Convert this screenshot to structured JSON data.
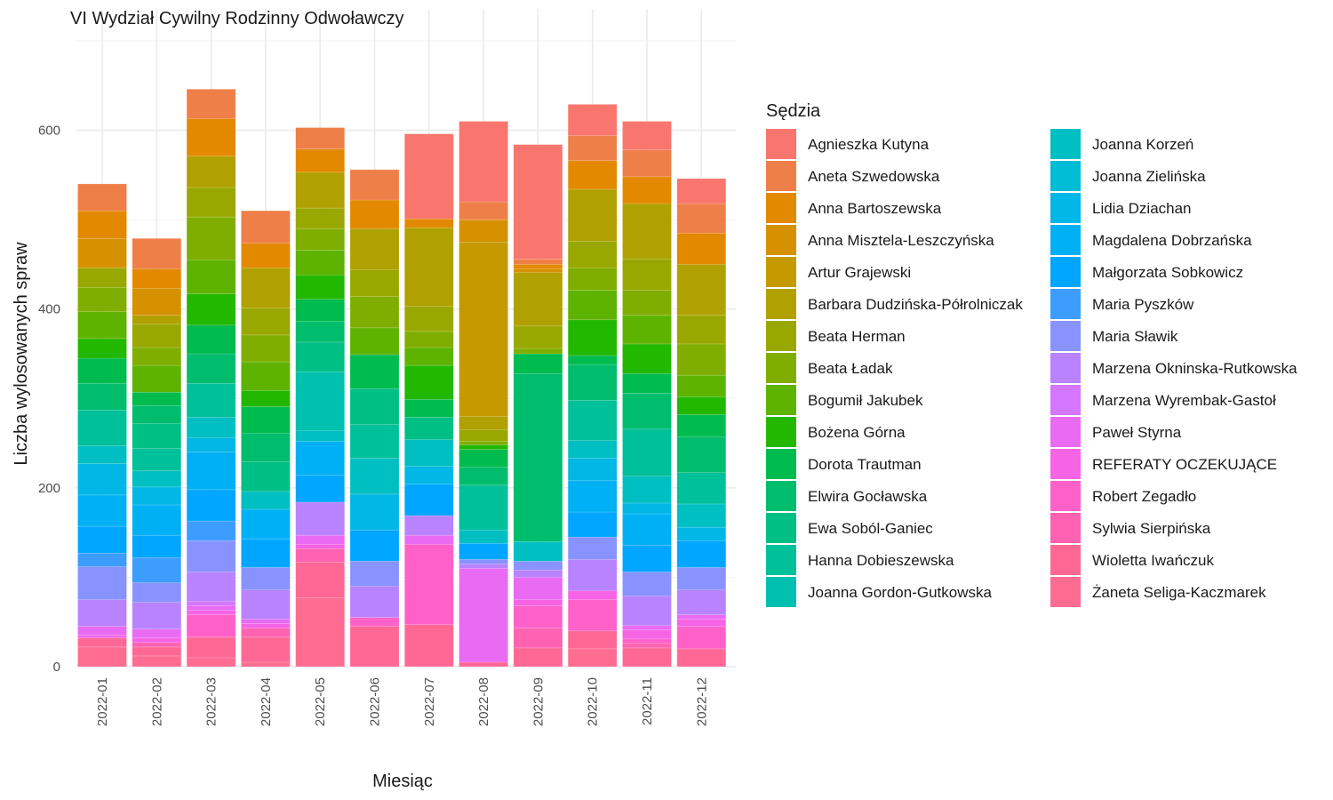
{
  "chart_data": {
    "type": "bar",
    "stacked": true,
    "title": "VI Wydział Cywilny Rodzinny Odwoławczy",
    "xlabel": "Miesiąc",
    "ylabel": "Liczba wylosowanych spraw",
    "ylim": [
      0,
      700
    ],
    "y_ticks": [
      0,
      200,
      400,
      600
    ],
    "grid": true,
    "legend": {
      "title": "Sędzia",
      "position": "right",
      "columns": 2
    },
    "categories": [
      "2022-01",
      "2022-02",
      "2022-03",
      "2022-04",
      "2022-05",
      "2022-06",
      "2022-07",
      "2022-08",
      "2022-09",
      "2022-10",
      "2022-11",
      "2022-12"
    ],
    "series": [
      {
        "name": "Agnieszka Kutyna",
        "color": "#F8766D",
        "values": [
          0,
          0,
          0,
          0,
          0,
          0,
          95,
          90,
          128,
          35,
          32,
          28
        ]
      },
      {
        "name": "Aneta Szwedowska",
        "color": "#EF7F49",
        "values": [
          30,
          34,
          33,
          36,
          24,
          34,
          0,
          20,
          6,
          28,
          30,
          33
        ]
      },
      {
        "name": "Anna Bartoszewska",
        "color": "#E38900",
        "values": [
          31,
          22,
          42,
          28,
          26,
          32,
          10,
          0,
          5,
          32,
          30,
          35
        ]
      },
      {
        "name": "Anna Misztela-Leszczyńska",
        "color": "#D69100",
        "values": [
          33,
          30,
          0,
          0,
          0,
          0,
          0,
          25,
          4,
          0,
          0,
          0
        ]
      },
      {
        "name": "Artur Grajewski",
        "color": "#C49A00",
        "values": [
          0,
          0,
          0,
          0,
          0,
          0,
          0,
          195,
          0,
          0,
          0,
          0
        ]
      },
      {
        "name": "Barbara Dudzińska-Półrolniczak",
        "color": "#B0A000",
        "values": [
          0,
          10,
          35,
          45,
          40,
          46,
          88,
          15,
          60,
          58,
          62,
          57
        ]
      },
      {
        "name": "Beata Herman",
        "color": "#99A800",
        "values": [
          22,
          26,
          33,
          30,
          23,
          30,
          28,
          13,
          25,
          30,
          35,
          32
        ]
      },
      {
        "name": "Beata Ładak",
        "color": "#7FAE00",
        "values": [
          27,
          20,
          48,
          30,
          24,
          35,
          18,
          4,
          6,
          25,
          28,
          35
        ]
      },
      {
        "name": "Bogumił Jakubek",
        "color": "#5EB300",
        "values": [
          30,
          30,
          38,
          32,
          28,
          30,
          20,
          0,
          0,
          33,
          32,
          24
        ]
      },
      {
        "name": "Bożena Górna",
        "color": "#22B800",
        "values": [
          22,
          0,
          35,
          18,
          27,
          0,
          38,
          5,
          0,
          40,
          33,
          20
        ]
      },
      {
        "name": "Dorota Trautman",
        "color": "#00BB4E",
        "values": [
          28,
          15,
          32,
          30,
          25,
          38,
          20,
          20,
          22,
          10,
          22,
          25
        ]
      },
      {
        "name": "Elwira Gocławska",
        "color": "#00BD6D",
        "values": [
          30,
          20,
          33,
          32,
          23,
          0,
          0,
          20,
          188,
          40,
          40,
          40
        ]
      },
      {
        "name": "Ewa Soból-Ganiec",
        "color": "#00BF85",
        "values": [
          0,
          28,
          0,
          33,
          33,
          40,
          25,
          0,
          0,
          0,
          0,
          0
        ]
      },
      {
        "name": "Hanna Dobieszewska",
        "color": "#00C09A",
        "values": [
          40,
          25,
          38,
          0,
          0,
          38,
          0,
          50,
          0,
          45,
          53,
          35
        ]
      },
      {
        "name": "Joanna Gordon-Gutkowska",
        "color": "#00C0AF",
        "values": [
          0,
          0,
          0,
          0,
          66,
          0,
          0,
          0,
          0,
          0,
          0,
          0
        ]
      },
      {
        "name": "Joanna Korzeń",
        "color": "#00BFC2",
        "values": [
          20,
          18,
          23,
          20,
          12,
          40,
          30,
          15,
          22,
          20,
          30,
          26
        ]
      },
      {
        "name": "Joanna Zielińska",
        "color": "#00BCD5",
        "values": [
          0,
          0,
          0,
          0,
          0,
          0,
          0,
          0,
          0,
          0,
          0,
          0
        ]
      },
      {
        "name": "Lidia Dziachan",
        "color": "#00B7E6",
        "values": [
          35,
          20,
          16,
          0,
          0,
          40,
          20,
          0,
          0,
          25,
          12,
          15
        ]
      },
      {
        "name": "Magdalena Dobrzańska",
        "color": "#00B0F5",
        "values": [
          35,
          34,
          42,
          33,
          38,
          0,
          0,
          0,
          0,
          35,
          35,
          0
        ]
      },
      {
        "name": "Małgorzata Sobkowicz",
        "color": "#00A6FF",
        "values": [
          30,
          25,
          35,
          32,
          30,
          35,
          35,
          18,
          0,
          28,
          30,
          30
        ]
      },
      {
        "name": "Maria Pyszków",
        "color": "#3C9DFF",
        "values": [
          15,
          28,
          22,
          0,
          0,
          0,
          0,
          0,
          0,
          0,
          0,
          0
        ]
      },
      {
        "name": "Maria Sławik",
        "color": "#8993FF",
        "values": [
          37,
          22,
          35,
          25,
          0,
          28,
          0,
          5,
          10,
          25,
          27,
          25
        ]
      },
      {
        "name": "Marzena Okninska-Rutkowska",
        "color": "#B983FF",
        "values": [
          30,
          30,
          33,
          33,
          37,
          35,
          22,
          5,
          8,
          35,
          33,
          28
        ]
      },
      {
        "name": "Marzena Wyrembak-Gastoł",
        "color": "#D576FF",
        "values": [
          0,
          0,
          5,
          0,
          0,
          0,
          0,
          0,
          0,
          0,
          0,
          0
        ]
      },
      {
        "name": "Paweł Styrna",
        "color": "#E96BF4",
        "values": [
          10,
          10,
          5,
          5,
          10,
          0,
          10,
          105,
          25,
          0,
          5,
          5
        ]
      },
      {
        "name": "REFERATY OCZEKUJĄCE",
        "color": "#F664E5",
        "values": [
          3,
          5,
          5,
          5,
          5,
          0,
          0,
          0,
          7,
          10,
          10,
          8
        ]
      },
      {
        "name": "Robert Zegadło",
        "color": "#FF61C9",
        "values": [
          0,
          0,
          25,
          0,
          0,
          10,
          90,
          0,
          25,
          35,
          5,
          25
        ]
      },
      {
        "name": "Sylwia Sierpińska",
        "color": "#FF62B0",
        "values": [
          0,
          5,
          0,
          10,
          15,
          0,
          0,
          0,
          22,
          0,
          5,
          0
        ]
      },
      {
        "name": "Wioletta Iwańczuk",
        "color": "#FF6895",
        "values": [
          10,
          10,
          23,
          28,
          40,
          45,
          47,
          5,
          21,
          20,
          21,
          20
        ]
      },
      {
        "name": "Żaneta Seliga-Kaczmarek",
        "color": "#FF6C91",
        "values": [
          22,
          12,
          10,
          5,
          77,
          0,
          0,
          0,
          0,
          20,
          0,
          0
        ]
      }
    ]
  }
}
